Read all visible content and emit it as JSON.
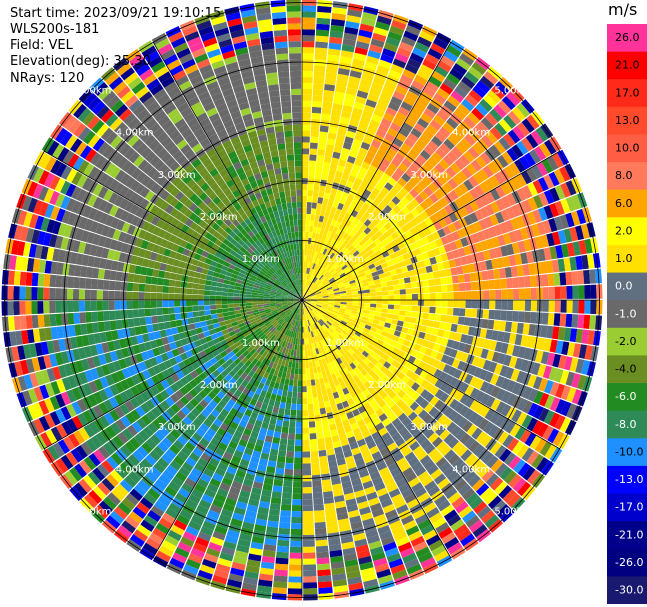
{
  "info": {
    "start_time": "Start time: 2023/09/21 19:10:15",
    "instrument": "WLS200s-181",
    "field": "Field: VEL",
    "elevation": "Elevation(deg): 35.30",
    "nrays": "NRays: 120"
  },
  "colorbar": {
    "unit": "m/s",
    "entries": [
      {
        "label": "26.0",
        "color": "#ff3399"
      },
      {
        "label": "21.0",
        "color": "#ff0000"
      },
      {
        "label": "17.0",
        "color": "#ff2a1a"
      },
      {
        "label": "13.0",
        "color": "#ff4a2c"
      },
      {
        "label": "10.0",
        "color": "#ff5e45"
      },
      {
        "label": "8.0",
        "color": "#ff7a5a"
      },
      {
        "label": "6.0",
        "color": "#ffa500"
      },
      {
        "label": "2.0",
        "color": "#ffff00"
      },
      {
        "label": "1.0",
        "color": "#ffe000"
      },
      {
        "label": "0.0",
        "color": "#607080"
      },
      {
        "label": "-1.0",
        "color": "#696969"
      },
      {
        "label": "-2.0",
        "color": "#9acd32"
      },
      {
        "label": "-4.0",
        "color": "#6b8e23"
      },
      {
        "label": "-6.0",
        "color": "#228b22"
      },
      {
        "label": "-8.0",
        "color": "#2e8b57"
      },
      {
        "label": "-10.0",
        "color": "#1e90ff"
      },
      {
        "label": "-13.0",
        "color": "#0000ff"
      },
      {
        "label": "-17.0",
        "color": "#0000cd"
      },
      {
        "label": "-21.0",
        "color": "#00008b"
      },
      {
        "label": "-26.0",
        "color": "#000080"
      },
      {
        "label": "-30.0",
        "color": "#191970"
      }
    ]
  },
  "chart_data": {
    "type": "heatmap",
    "projection": "polar (PPI)",
    "field": "VEL",
    "units": "m/s",
    "nrays": 120,
    "elevation_deg": 35.3,
    "range_rings_km": [
      1.0,
      2.0,
      3.0,
      4.0,
      5.0
    ],
    "ring_labels": [
      "1.00km",
      "2.00km",
      "3.00km",
      "4.00km",
      "5.00km"
    ],
    "max_range_km": 5.0,
    "spokes_deg": [
      0,
      30,
      60,
      90,
      120,
      150,
      180,
      210,
      240,
      270,
      300,
      330
    ],
    "velocity_field_summary": [
      {
        "azimuth_deg": [
          0,
          90
        ],
        "range_km": [
          0,
          3.5
        ],
        "value_ms": 1.5
      },
      {
        "azimuth_deg": [
          30,
          90
        ],
        "range_km": [
          2.5,
          4.3
        ],
        "value_ms": 6.0
      },
      {
        "azimuth_deg": [
          90,
          180
        ],
        "range_km": [
          0,
          2.5
        ],
        "value_ms": 1.5
      },
      {
        "azimuth_deg": [
          180,
          270
        ],
        "range_km": [
          0,
          4.3
        ],
        "value_ms": -5.0
      },
      {
        "azimuth_deg": [
          270,
          360
        ],
        "range_km": [
          0,
          3.0
        ],
        "value_ms": -3.0
      },
      {
        "azimuth_deg": [
          0,
          360
        ],
        "range_km": [
          4.3,
          5.0
        ],
        "value_ms": "noise"
      }
    ]
  }
}
